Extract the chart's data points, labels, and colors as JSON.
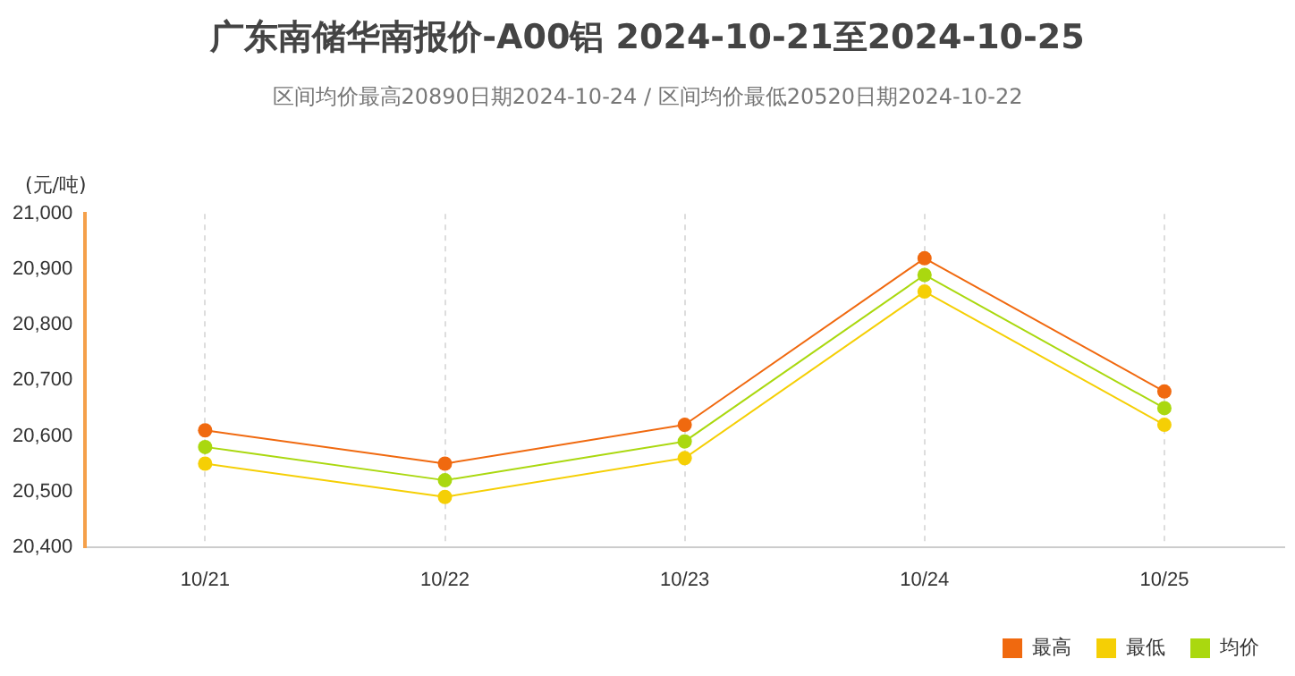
{
  "chart_data": {
    "type": "line",
    "title": "广东南储华南报价-A00铝 2024-10-21至2024-10-25",
    "subtitle": "区间均价最高20890日期2024-10-24 / 区间均价最低20520日期2024-10-22",
    "ylabel": "(元/吨)",
    "categories": [
      "10/21",
      "10/22",
      "10/23",
      "10/24",
      "10/25"
    ],
    "series": [
      {
        "name": "最高",
        "color": "#f0690f",
        "values": [
          20610,
          20550,
          20620,
          20920,
          20680
        ]
      },
      {
        "name": "最低",
        "color": "#f5cf05",
        "values": [
          20550,
          20490,
          20560,
          20860,
          20620
        ]
      },
      {
        "name": "均价",
        "color": "#aad80f",
        "values": [
          20580,
          20520,
          20590,
          20890,
          20650
        ]
      }
    ],
    "ylim": [
      20400,
      21000
    ],
    "yticks": [
      {
        "value": 20400,
        "label": "20,400"
      },
      {
        "value": 20500,
        "label": "20,500"
      },
      {
        "value": 20600,
        "label": "20,600"
      },
      {
        "value": 20700,
        "label": "20,700"
      },
      {
        "value": 20800,
        "label": "20,800"
      },
      {
        "value": 20900,
        "label": "20,900"
      },
      {
        "value": 21000,
        "label": "21,000"
      }
    ],
    "grid": "x",
    "legend": "bottom right",
    "marker": "circle",
    "line_style": "solid"
  }
}
